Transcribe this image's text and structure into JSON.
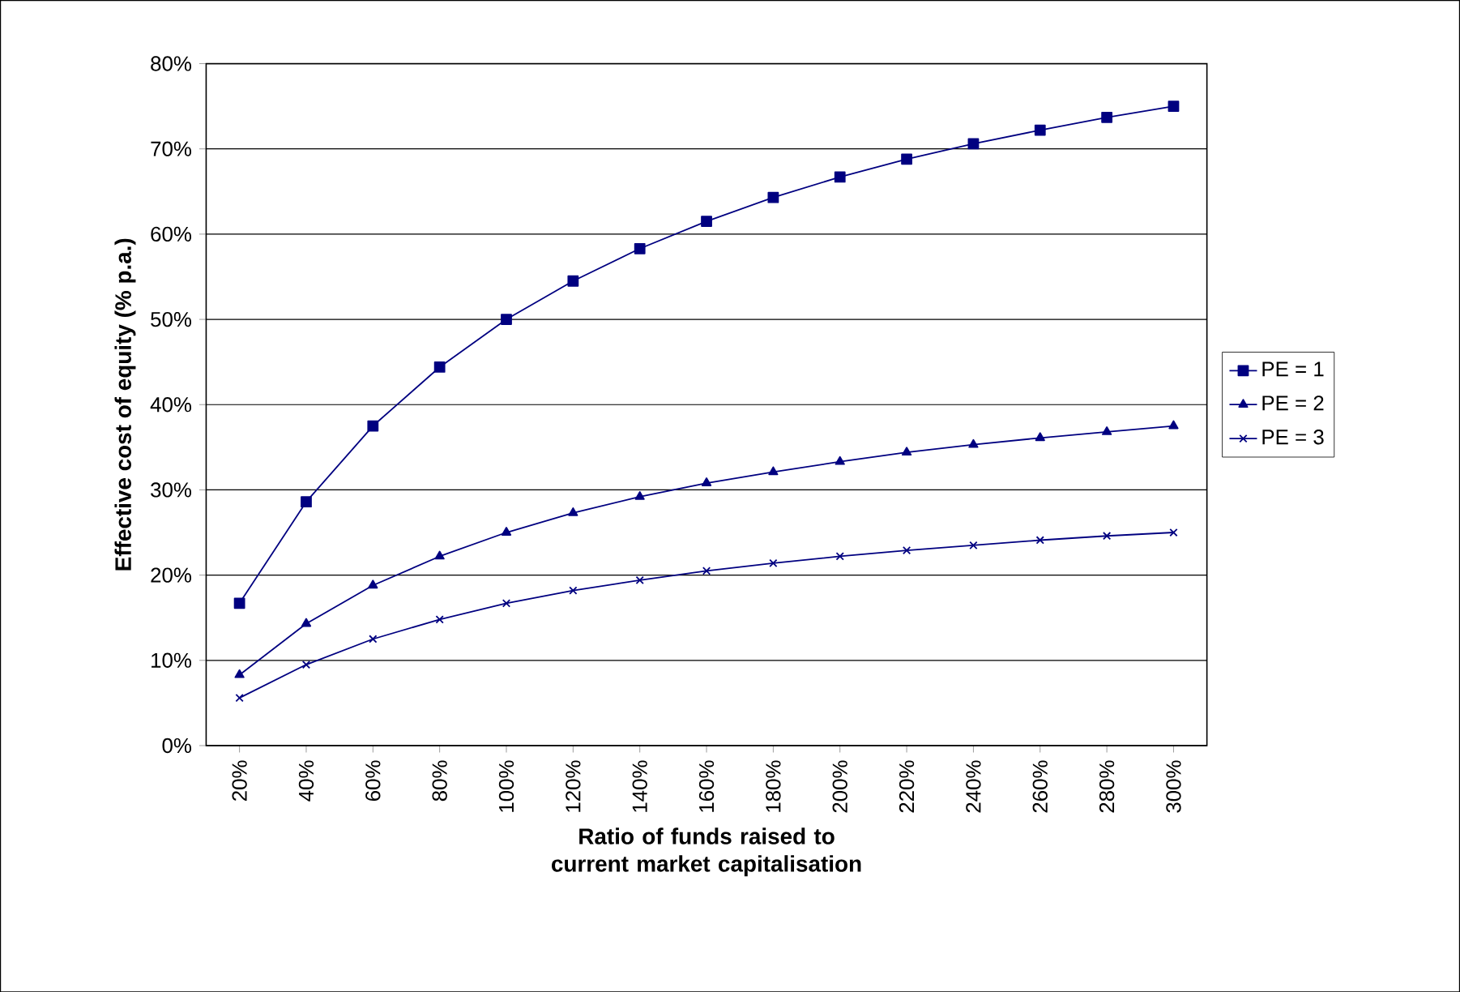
{
  "chart_data": {
    "type": "line",
    "xlabel": "Ratio of funds raised to current market capitalisation",
    "ylabel": "Effective cost of equity (% p.a.)",
    "categories": [
      "20%",
      "40%",
      "60%",
      "80%",
      "100%",
      "120%",
      "140%",
      "160%",
      "180%",
      "200%",
      "220%",
      "240%",
      "260%",
      "280%",
      "300%"
    ],
    "series": [
      {
        "name": "PE = 1",
        "color": "#000080",
        "marker": "square",
        "values": [
          16.7,
          28.6,
          37.5,
          44.4,
          50.0,
          54.5,
          58.3,
          61.5,
          64.3,
          66.7,
          68.8,
          70.6,
          72.2,
          73.7,
          75.0
        ]
      },
      {
        "name": "PE = 2",
        "color": "#000080",
        "marker": "triangle",
        "values": [
          8.3,
          14.3,
          18.8,
          22.2,
          25.0,
          27.3,
          29.2,
          30.8,
          32.1,
          33.3,
          34.4,
          35.3,
          36.1,
          36.8,
          37.5
        ]
      },
      {
        "name": "PE = 3",
        "color": "#000080",
        "marker": "cross",
        "values": [
          5.6,
          9.5,
          12.5,
          14.8,
          16.7,
          18.2,
          19.4,
          20.5,
          21.4,
          22.2,
          22.9,
          23.5,
          24.1,
          24.6,
          25.0
        ]
      }
    ],
    "ylim": [
      0,
      80
    ],
    "yticks": [
      {
        "value": 0,
        "label": "0%"
      },
      {
        "value": 10,
        "label": "10%"
      },
      {
        "value": 20,
        "label": "20%"
      },
      {
        "value": 30,
        "label": "30%"
      },
      {
        "value": 40,
        "label": "40%"
      },
      {
        "value": 50,
        "label": "50%"
      },
      {
        "value": 60,
        "label": "60%"
      },
      {
        "value": 70,
        "label": "70%"
      },
      {
        "value": 80,
        "label": "80%"
      }
    ],
    "grid": "y",
    "legend": "right",
    "line_style": "solid"
  }
}
